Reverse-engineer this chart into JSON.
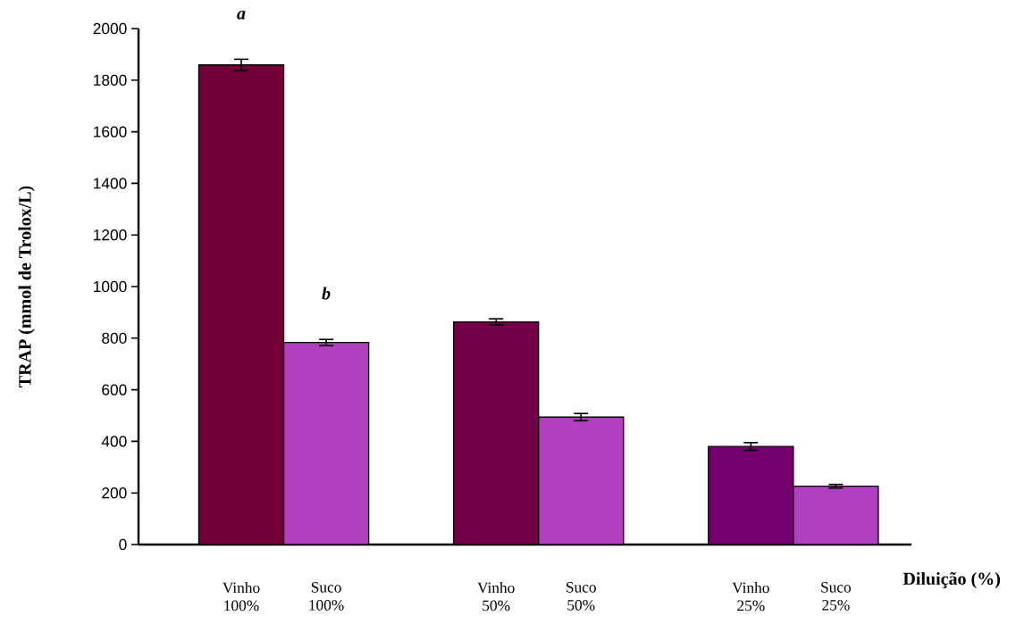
{
  "chart_data": {
    "type": "bar",
    "ylabel": "TRAP (mmol de Trolox/L)",
    "xlabel": "Diluição (%)",
    "categories": [
      "Vinho 100%",
      "Suco 100%",
      "Vinho 50%",
      "Suco 50%",
      "Vinho 25%",
      "Suco 25%"
    ],
    "values": [
      1859,
      783,
      863,
      494,
      380,
      226
    ],
    "errors": [
      22,
      12,
      12,
      14,
      15,
      7
    ],
    "colors": [
      "#740038",
      "#b040c0",
      "#74004a",
      "#b040c0",
      "#740070",
      "#b040c0"
    ],
    "ylim": [
      0,
      2000
    ],
    "yticks": [
      0,
      200,
      400,
      600,
      800,
      1000,
      1200,
      1400,
      1600,
      1800,
      2000
    ],
    "annotations": [
      "a",
      "b"
    ]
  }
}
